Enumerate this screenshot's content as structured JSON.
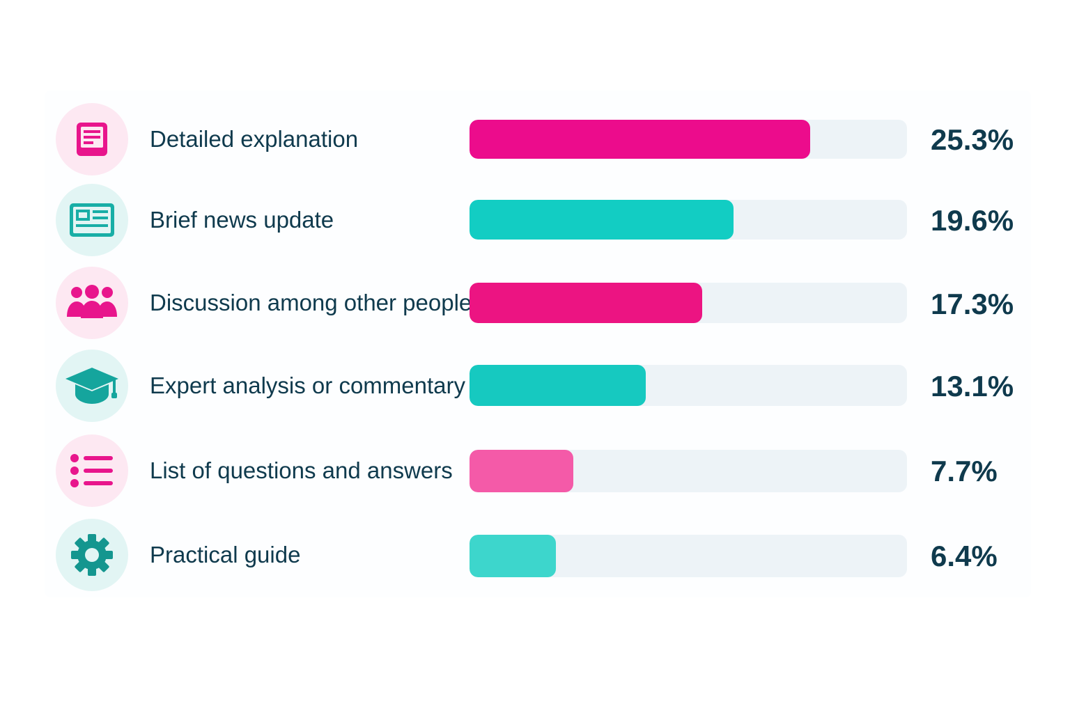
{
  "chart_data": {
    "type": "bar",
    "orientation": "horizontal",
    "categories": [
      "Detailed explanation",
      "Brief news update",
      "Discussion among other people",
      "Expert analysis or commentary",
      "List of questions and answers",
      "Practical guide"
    ],
    "values": [
      25.3,
      19.6,
      17.3,
      13.1,
      7.7,
      6.4
    ],
    "value_labels": [
      "25.3%",
      "19.6%",
      "17.3%",
      "13.1%",
      "7.7%",
      "6.4%"
    ],
    "icons": [
      "document-icon",
      "newspaper-icon",
      "people-icon",
      "graduation-cap-icon",
      "list-icon",
      "gear-icon"
    ],
    "bar_colors": [
      "#ec0c8c",
      "#12cdc3",
      "#ec1482",
      "#16c9c0",
      "#f45aa8",
      "#3dd6cc"
    ],
    "icon_colors": [
      "#e8158c",
      "#18aea6",
      "#e8158c",
      "#15a59d",
      "#e8158c",
      "#14968f"
    ],
    "icon_bg_colors": [
      "#fde8f2",
      "#e2f5f4",
      "#fde8f2",
      "#e2f5f4",
      "#fde8f2",
      "#e2f5f4"
    ],
    "track_color": "#edf3f7",
    "xlim": [
      0,
      32.5
    ],
    "grid": false,
    "legend": "none",
    "title": "",
    "xlabel": "",
    "ylabel": ""
  }
}
